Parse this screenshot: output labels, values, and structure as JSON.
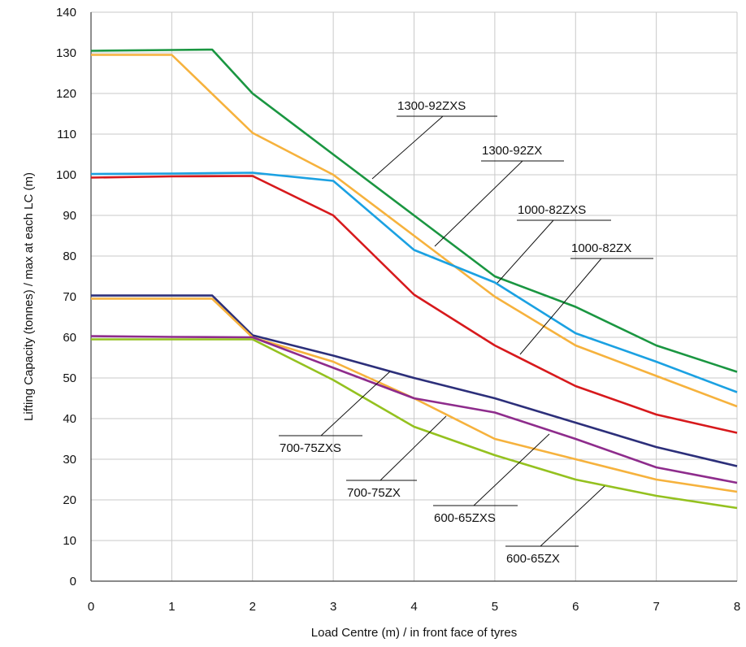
{
  "chart_data": {
    "type": "line",
    "title": "",
    "xlabel": "Load Centre (m) / in front face of tyres",
    "ylabel": "Lifting Capacity (tonnes) / max at each LC (m)",
    "xlim": [
      0,
      8
    ],
    "ylim": [
      0,
      140
    ],
    "x_ticks": [
      "0",
      "1",
      "2",
      "3",
      "4",
      "5",
      "6",
      "7",
      "8"
    ],
    "y_ticks": [
      "0",
      "10",
      "20",
      "30",
      "40",
      "50",
      "60",
      "70",
      "80",
      "90",
      "100",
      "110",
      "120",
      "130",
      "140"
    ],
    "grid": "vertical and horizontal",
    "legend": "inline callout labels",
    "series": [
      {
        "name": "1300-92ZXS",
        "color": "#1a9641",
        "points": [
          [
            0,
            130.5
          ],
          [
            1,
            130.7
          ],
          [
            1.5,
            130.8
          ],
          [
            2,
            120
          ],
          [
            3,
            105
          ],
          [
            4,
            90
          ],
          [
            5,
            75
          ],
          [
            6,
            67.5
          ],
          [
            7,
            58
          ],
          [
            8,
            51.5
          ]
        ]
      },
      {
        "name": "1300-92ZX",
        "color": "#f6b23d",
        "points": [
          [
            0,
            129.5
          ],
          [
            1,
            129.5
          ],
          [
            2,
            110.3
          ],
          [
            3,
            100
          ],
          [
            4,
            85
          ],
          [
            5,
            70
          ],
          [
            6,
            58
          ],
          [
            7,
            50.5
          ],
          [
            8,
            43
          ]
        ]
      },
      {
        "name": "1000-82ZXS",
        "color": "#1ba1e2",
        "points": [
          [
            0,
            100.2
          ],
          [
            1,
            100.3
          ],
          [
            2,
            100.5
          ],
          [
            3,
            98.5
          ],
          [
            4,
            81.5
          ],
          [
            5,
            73.5
          ],
          [
            6,
            61
          ],
          [
            7,
            54
          ],
          [
            8,
            46.5
          ]
        ]
      },
      {
        "name": "1000-82ZX",
        "color": "#d7191c",
        "points": [
          [
            0,
            99.3
          ],
          [
            1,
            99.6
          ],
          [
            2,
            99.7
          ],
          [
            3,
            90
          ],
          [
            4,
            70.5
          ],
          [
            5,
            58
          ],
          [
            6,
            48
          ],
          [
            7,
            41
          ],
          [
            8,
            36.5
          ]
        ]
      },
      {
        "name": "700-75ZXS",
        "color": "#2c2f7a",
        "points": [
          [
            0,
            70.3
          ],
          [
            1,
            70.3
          ],
          [
            1.5,
            70.3
          ],
          [
            2,
            60.5
          ],
          [
            3,
            55.5
          ],
          [
            4,
            50
          ],
          [
            5,
            45
          ],
          [
            6,
            39
          ],
          [
            7,
            33
          ],
          [
            8,
            28.3
          ]
        ]
      },
      {
        "name": "700-75ZX",
        "color": "#f6b23d",
        "points": [
          [
            0,
            69.5
          ],
          [
            1,
            69.5
          ],
          [
            1.5,
            69.5
          ],
          [
            2,
            60
          ],
          [
            3,
            54
          ],
          [
            4,
            45
          ],
          [
            5,
            35
          ],
          [
            6,
            30
          ],
          [
            7,
            25
          ],
          [
            8,
            22
          ]
        ]
      },
      {
        "name": "600-65ZXS",
        "color": "#8e2c8c",
        "points": [
          [
            0,
            60.3
          ],
          [
            1,
            60.1
          ],
          [
            2,
            60
          ],
          [
            3,
            52.5
          ],
          [
            4,
            45
          ],
          [
            5,
            41.5
          ],
          [
            6,
            35
          ],
          [
            7,
            28
          ],
          [
            8,
            24.2
          ]
        ]
      },
      {
        "name": "600-65ZX",
        "color": "#94c11f",
        "points": [
          [
            0,
            59.5
          ],
          [
            1,
            59.5
          ],
          [
            2,
            59.5
          ],
          [
            3,
            49.5
          ],
          [
            4,
            38
          ],
          [
            5,
            31
          ],
          [
            6,
            25
          ],
          [
            7,
            21
          ],
          [
            8,
            18
          ]
        ]
      }
    ],
    "annotations": [
      {
        "label": "1300-92ZXS"
      },
      {
        "label": "1300-92ZX"
      },
      {
        "label": "1000-82ZXS"
      },
      {
        "label": "1000-82ZX"
      },
      {
        "label": "700-75ZXS"
      },
      {
        "label": "700-75ZX"
      },
      {
        "label": "600-65ZXS"
      },
      {
        "label": "600-65ZX"
      }
    ]
  }
}
